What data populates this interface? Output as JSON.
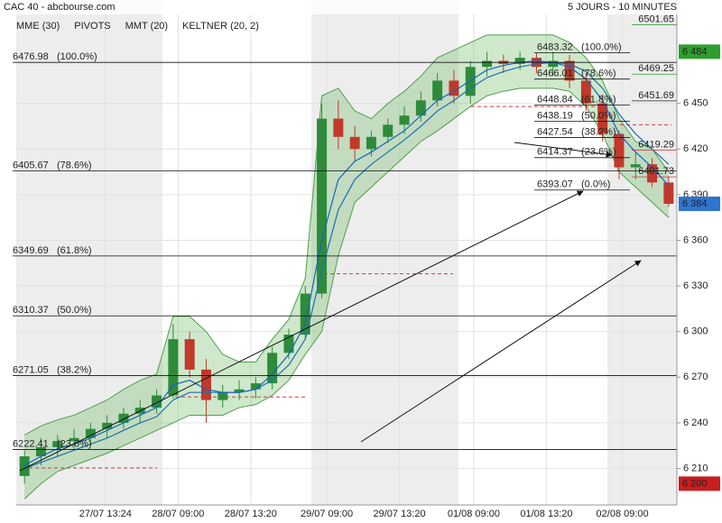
{
  "chart_data": {
    "type": "candlestick",
    "title": "CAC 40 - abcbourse.com",
    "subtitle": "5 JOURS - 10 MINUTES",
    "legend": [
      {
        "name": "MME (30)",
        "color": "#1565c0"
      },
      {
        "name": "PIVOTS",
        "color": "#555555"
      },
      {
        "name": "MMT (20)",
        "color": "#1e6fb0"
      },
      {
        "name": "KELTNER (20, 2)",
        "color": "#3c9a3c"
      }
    ],
    "up_color": "#2e8b3a",
    "down_color": "#c0392b",
    "open": [
      6205,
      6218,
      6224,
      6228,
      6230,
      6236,
      6240,
      6246,
      6250,
      6258,
      6295,
      6275,
      6255,
      6260,
      6262,
      6266,
      6286,
      6298,
      6325,
      6440,
      6428,
      6420,
      6428,
      6436,
      6442,
      6452,
      6465,
      6455,
      6474,
      6478,
      6476,
      6480,
      6474,
      6478,
      6465,
      6450,
      6430,
      6408,
      6410,
      6398
    ],
    "high": [
      6222,
      6230,
      6232,
      6236,
      6240,
      6245,
      6250,
      6255,
      6262,
      6305,
      6300,
      6282,
      6265,
      6268,
      6270,
      6290,
      6302,
      6330,
      6450,
      6452,
      6435,
      6432,
      6440,
      6448,
      6458,
      6470,
      6472,
      6478,
      6484,
      6482,
      6484,
      6483,
      6484,
      6482,
      6470,
      6456,
      6432,
      6418,
      6414,
      6402
    ],
    "low": [
      6200,
      6212,
      6218,
      6222,
      6226,
      6230,
      6236,
      6240,
      6246,
      6256,
      6270,
      6240,
      6250,
      6255,
      6256,
      6262,
      6282,
      6295,
      6322,
      6420,
      6412,
      6415,
      6424,
      6430,
      6438,
      6448,
      6450,
      6450,
      6468,
      6470,
      6472,
      6470,
      6468,
      6460,
      6445,
      6425,
      6400,
      6400,
      6395,
      6382
    ],
    "close": [
      6218,
      6224,
      6228,
      6230,
      6236,
      6240,
      6246,
      6250,
      6258,
      6295,
      6275,
      6255,
      6260,
      6262,
      6266,
      6286,
      6298,
      6325,
      6440,
      6428,
      6420,
      6428,
      6436,
      6442,
      6452,
      6465,
      6455,
      6474,
      6478,
      6476,
      6480,
      6474,
      6478,
      6465,
      6450,
      6430,
      6408,
      6410,
      6398,
      6384
    ],
    "keltner_upper": [
      6232,
      6238,
      6242,
      6245,
      6250,
      6255,
      6262,
      6268,
      6272,
      6310,
      6310,
      6300,
      6285,
      6280,
      6280,
      6295,
      6308,
      6335,
      6455,
      6460,
      6445,
      6440,
      6450,
      6458,
      6468,
      6480,
      6485,
      6490,
      6495,
      6495,
      6495,
      6495,
      6495,
      6490,
      6480,
      6465,
      6440,
      6425,
      6420,
      6405
    ],
    "keltner_lower": [
      6190,
      6200,
      6208,
      6212,
      6216,
      6220,
      6225,
      6230,
      6235,
      6240,
      6245,
      6245,
      6245,
      6250,
      6252,
      6258,
      6268,
      6285,
      6300,
      6350,
      6385,
      6395,
      6405,
      6415,
      6425,
      6432,
      6440,
      6448,
      6455,
      6458,
      6460,
      6460,
      6460,
      6458,
      6448,
      6430,
      6405,
      6395,
      6385,
      6375
    ],
    "mme": [
      6212,
      6218,
      6223,
      6226,
      6230,
      6235,
      6240,
      6245,
      6250,
      6265,
      6268,
      6262,
      6260,
      6260,
      6262,
      6272,
      6285,
      6305,
      6360,
      6400,
      6412,
      6418,
      6425,
      6432,
      6442,
      6452,
      6458,
      6465,
      6472,
      6475,
      6477,
      6478,
      6477,
      6474,
      6466,
      6452,
      6430,
      6418,
      6408,
      6396
    ],
    "mmt": [
      6210,
      6214,
      6218,
      6222,
      6226,
      6230,
      6235,
      6240,
      6244,
      6255,
      6260,
      6260,
      6260,
      6260,
      6262,
      6268,
      6278,
      6295,
      6340,
      6380,
      6400,
      6410,
      6418,
      6426,
      6435,
      6445,
      6452,
      6460,
      6467,
      6471,
      6474,
      6476,
      6477,
      6476,
      6471,
      6460,
      6443,
      6430,
      6420,
      6410
    ],
    "pivots": [
      6210.4,
      6257,
      6338,
      6448,
      6436
    ],
    "fib_left": [
      {
        "value": 6476.98,
        "ratio": "(100.0%)"
      },
      {
        "value": 6405.67,
        "ratio": "(78.6%)"
      },
      {
        "value": 6349.69,
        "ratio": "(61.8%)"
      },
      {
        "value": 6310.37,
        "ratio": "(50.0%)"
      },
      {
        "value": 6271.05,
        "ratio": "(38.2%)"
      },
      {
        "value": 6222.41,
        "ratio": "(23.6%)"
      }
    ],
    "fib_right": [
      {
        "value": 6483.32,
        "ratio": "(100.0%)"
      },
      {
        "value": 6466.01,
        "ratio": "(78.6%)"
      },
      {
        "value": 6448.84,
        "ratio": "(61.8%)"
      },
      {
        "value": 6438.19,
        "ratio": "(50.0%)"
      },
      {
        "value": 6427.54,
        "ratio": "(38.2%)"
      },
      {
        "value": 6414.37,
        "ratio": "(23.6%)"
      },
      {
        "value": 6393.07,
        "ratio": "(0.0%)"
      }
    ],
    "level_labels": [
      {
        "value": 6501.65,
        "color": "#2e9e2e"
      },
      {
        "value": 6469.25,
        "color": "#2e9e2e"
      },
      {
        "value": 6451.69,
        "color": "#222222"
      },
      {
        "value": 6419.29,
        "color": "#d03030"
      },
      {
        "value": 6401.73,
        "color": "#d03030"
      }
    ],
    "badges": [
      {
        "value": 6484,
        "label": "6 484",
        "color": "#2e9e2e"
      },
      {
        "value": 6384,
        "label": "6 384",
        "color": "#2f74d0"
      },
      {
        "value": 6200,
        "label": "6 200",
        "color": "#c81e1e"
      }
    ],
    "xlim": [
      -0.5,
      39.5
    ],
    "xticks": [
      {
        "value": 4.9,
        "label": "27/07 13:24"
      },
      {
        "value": 9.3,
        "label": "28/07 09:00"
      },
      {
        "value": 13.7,
        "label": "28/07 13:20"
      },
      {
        "value": 18.3,
        "label": "29/07 09:00"
      },
      {
        "value": 22.7,
        "label": "29/07 13:20"
      },
      {
        "value": 27.2,
        "label": "01/08 09:00"
      },
      {
        "value": 31.6,
        "label": "01/08 13:20"
      },
      {
        "value": 36.2,
        "label": "02/08 09:00"
      }
    ],
    "ylim": [
      6186,
      6518
    ],
    "yticks": [
      {
        "value": 6210,
        "label": "6 210"
      },
      {
        "value": 6240,
        "label": "6 240"
      },
      {
        "value": 6270,
        "label": "6 270"
      },
      {
        "value": 6300,
        "label": "6 300"
      },
      {
        "value": 6330,
        "label": "6 330"
      },
      {
        "value": 6360,
        "label": "6 360"
      },
      {
        "value": 6390,
        "label": "6 390"
      },
      {
        "value": 6420,
        "label": "6 420"
      },
      {
        "value": 6450,
        "label": "6 450"
      }
    ],
    "grid": true
  }
}
